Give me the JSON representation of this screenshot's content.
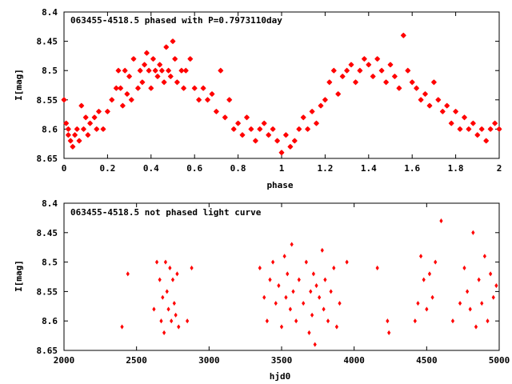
{
  "chart_data": [
    {
      "type": "scatter",
      "title": "063455-4518.5 phased with P=0.7973110day",
      "xlabel": "phase",
      "ylabel": "I[mag]",
      "xlim": [
        0,
        2
      ],
      "ylim": [
        8.4,
        8.65
      ],
      "y_inverted": true,
      "xticks": [
        "0",
        "0.2",
        "0.4",
        "0.6",
        "0.8",
        "1",
        "1.2",
        "1.4",
        "1.6",
        "1.8",
        "2"
      ],
      "yticks": [
        "8.4",
        "8.45",
        "8.5",
        "8.55",
        "8.6",
        "8.65"
      ],
      "grid": false,
      "color": "#ff0000",
      "marker": "star",
      "points": [
        [
          0.0,
          8.55
        ],
        [
          0.01,
          8.59
        ],
        [
          0.02,
          8.61
        ],
        [
          0.02,
          8.6
        ],
        [
          0.03,
          8.62
        ],
        [
          0.04,
          8.63
        ],
        [
          0.05,
          8.61
        ],
        [
          0.06,
          8.6
        ],
        [
          0.07,
          8.62
        ],
        [
          0.08,
          8.56
        ],
        [
          0.09,
          8.6
        ],
        [
          0.1,
          8.58
        ],
        [
          0.11,
          8.61
        ],
        [
          0.12,
          8.59
        ],
        [
          0.14,
          8.58
        ],
        [
          0.15,
          8.6
        ],
        [
          0.16,
          8.57
        ],
        [
          0.18,
          8.6
        ],
        [
          0.2,
          8.57
        ],
        [
          0.22,
          8.55
        ],
        [
          0.24,
          8.53
        ],
        [
          0.25,
          8.5
        ],
        [
          0.26,
          8.53
        ],
        [
          0.27,
          8.56
        ],
        [
          0.28,
          8.5
        ],
        [
          0.29,
          8.54
        ],
        [
          0.3,
          8.51
        ],
        [
          0.31,
          8.55
        ],
        [
          0.32,
          8.48
        ],
        [
          0.34,
          8.53
        ],
        [
          0.35,
          8.5
        ],
        [
          0.36,
          8.52
        ],
        [
          0.37,
          8.49
        ],
        [
          0.38,
          8.47
        ],
        [
          0.39,
          8.5
        ],
        [
          0.4,
          8.53
        ],
        [
          0.41,
          8.48
        ],
        [
          0.42,
          8.5
        ],
        [
          0.43,
          8.51
        ],
        [
          0.44,
          8.49
        ],
        [
          0.45,
          8.5
        ],
        [
          0.46,
          8.52
        ],
        [
          0.47,
          8.46
        ],
        [
          0.48,
          8.5
        ],
        [
          0.49,
          8.51
        ],
        [
          0.5,
          8.45
        ],
        [
          0.51,
          8.48
        ],
        [
          0.52,
          8.52
        ],
        [
          0.54,
          8.5
        ],
        [
          0.55,
          8.53
        ],
        [
          0.56,
          8.5
        ],
        [
          0.58,
          8.48
        ],
        [
          0.6,
          8.53
        ],
        [
          0.62,
          8.55
        ],
        [
          0.64,
          8.53
        ],
        [
          0.66,
          8.55
        ],
        [
          0.68,
          8.54
        ],
        [
          0.7,
          8.57
        ],
        [
          0.72,
          8.5
        ],
        [
          0.74,
          8.58
        ],
        [
          0.76,
          8.55
        ],
        [
          0.78,
          8.6
        ],
        [
          0.8,
          8.59
        ],
        [
          0.82,
          8.61
        ],
        [
          0.84,
          8.58
        ],
        [
          0.86,
          8.6
        ],
        [
          0.88,
          8.62
        ],
        [
          0.9,
          8.6
        ],
        [
          0.92,
          8.59
        ],
        [
          0.94,
          8.61
        ],
        [
          0.96,
          8.6
        ],
        [
          0.98,
          8.62
        ],
        [
          1.0,
          8.64
        ],
        [
          1.02,
          8.61
        ],
        [
          1.04,
          8.63
        ],
        [
          1.06,
          8.62
        ],
        [
          1.08,
          8.6
        ],
        [
          1.1,
          8.58
        ],
        [
          1.12,
          8.6
        ],
        [
          1.14,
          8.57
        ],
        [
          1.16,
          8.59
        ],
        [
          1.18,
          8.56
        ],
        [
          1.2,
          8.55
        ],
        [
          1.22,
          8.52
        ],
        [
          1.24,
          8.5
        ],
        [
          1.26,
          8.54
        ],
        [
          1.28,
          8.51
        ],
        [
          1.3,
          8.5
        ],
        [
          1.32,
          8.49
        ],
        [
          1.34,
          8.52
        ],
        [
          1.36,
          8.5
        ],
        [
          1.38,
          8.48
        ],
        [
          1.4,
          8.49
        ],
        [
          1.42,
          8.51
        ],
        [
          1.44,
          8.48
        ],
        [
          1.46,
          8.5
        ],
        [
          1.48,
          8.52
        ],
        [
          1.5,
          8.49
        ],
        [
          1.52,
          8.51
        ],
        [
          1.54,
          8.53
        ],
        [
          1.56,
          8.44
        ],
        [
          1.58,
          8.5
        ],
        [
          1.6,
          8.52
        ],
        [
          1.62,
          8.53
        ],
        [
          1.64,
          8.55
        ],
        [
          1.66,
          8.54
        ],
        [
          1.68,
          8.56
        ],
        [
          1.7,
          8.52
        ],
        [
          1.72,
          8.55
        ],
        [
          1.74,
          8.57
        ],
        [
          1.76,
          8.56
        ],
        [
          1.78,
          8.59
        ],
        [
          1.8,
          8.57
        ],
        [
          1.82,
          8.6
        ],
        [
          1.84,
          8.58
        ],
        [
          1.86,
          8.6
        ],
        [
          1.88,
          8.59
        ],
        [
          1.9,
          8.61
        ],
        [
          1.92,
          8.6
        ],
        [
          1.94,
          8.62
        ],
        [
          1.96,
          8.6
        ],
        [
          1.98,
          8.59
        ],
        [
          2.0,
          8.6
        ]
      ]
    },
    {
      "type": "scatter",
      "title": "063455-4518.5 not phased light curve",
      "xlabel": "hjd0",
      "ylabel": "I[mag]",
      "xlim": [
        2000,
        5000
      ],
      "ylim": [
        8.4,
        8.65
      ],
      "y_inverted": true,
      "xticks": [
        "2000",
        "2500",
        "3000",
        "3500",
        "4000",
        "4500",
        "5000"
      ],
      "yticks": [
        "8.4",
        "8.45",
        "8.5",
        "8.55",
        "8.6",
        "8.65"
      ],
      "grid": false,
      "color": "#ff0000",
      "marker": "diamond",
      "points": [
        [
          2400,
          8.61
        ],
        [
          2440,
          8.52
        ],
        [
          2620,
          8.58
        ],
        [
          2640,
          8.5
        ],
        [
          2660,
          8.53
        ],
        [
          2670,
          8.6
        ],
        [
          2680,
          8.56
        ],
        [
          2690,
          8.62
        ],
        [
          2700,
          8.5
        ],
        [
          2710,
          8.55
        ],
        [
          2720,
          8.58
        ],
        [
          2730,
          8.51
        ],
        [
          2740,
          8.6
        ],
        [
          2750,
          8.53
        ],
        [
          2760,
          8.57
        ],
        [
          2770,
          8.59
        ],
        [
          2780,
          8.52
        ],
        [
          2790,
          8.61
        ],
        [
          2850,
          8.6
        ],
        [
          2880,
          8.51
        ],
        [
          3350,
          8.51
        ],
        [
          3380,
          8.56
        ],
        [
          3400,
          8.6
        ],
        [
          3420,
          8.53
        ],
        [
          3440,
          8.5
        ],
        [
          3460,
          8.57
        ],
        [
          3480,
          8.54
        ],
        [
          3500,
          8.61
        ],
        [
          3520,
          8.49
        ],
        [
          3530,
          8.56
        ],
        [
          3540,
          8.52
        ],
        [
          3560,
          8.58
        ],
        [
          3570,
          8.47
        ],
        [
          3580,
          8.55
        ],
        [
          3600,
          8.6
        ],
        [
          3620,
          8.53
        ],
        [
          3650,
          8.57
        ],
        [
          3670,
          8.5
        ],
        [
          3690,
          8.62
        ],
        [
          3700,
          8.55
        ],
        [
          3710,
          8.59
        ],
        [
          3720,
          8.52
        ],
        [
          3730,
          8.64
        ],
        [
          3740,
          8.54
        ],
        [
          3760,
          8.56
        ],
        [
          3780,
          8.48
        ],
        [
          3790,
          8.58
        ],
        [
          3800,
          8.53
        ],
        [
          3820,
          8.6
        ],
        [
          3840,
          8.55
        ],
        [
          3860,
          8.51
        ],
        [
          3880,
          8.61
        ],
        [
          3900,
          8.57
        ],
        [
          3950,
          8.5
        ],
        [
          4160,
          8.51
        ],
        [
          4230,
          8.6
        ],
        [
          4240,
          8.62
        ],
        [
          4420,
          8.6
        ],
        [
          4440,
          8.57
        ],
        [
          4460,
          8.49
        ],
        [
          4480,
          8.53
        ],
        [
          4500,
          8.58
        ],
        [
          4520,
          8.52
        ],
        [
          4540,
          8.56
        ],
        [
          4560,
          8.5
        ],
        [
          4600,
          8.43
        ],
        [
          4680,
          8.6
        ],
        [
          4730,
          8.57
        ],
        [
          4760,
          8.51
        ],
        [
          4780,
          8.55
        ],
        [
          4800,
          8.58
        ],
        [
          4820,
          8.45
        ],
        [
          4840,
          8.61
        ],
        [
          4860,
          8.53
        ],
        [
          4880,
          8.57
        ],
        [
          4900,
          8.49
        ],
        [
          4920,
          8.6
        ],
        [
          4940,
          8.52
        ],
        [
          4960,
          8.56
        ],
        [
          4980,
          8.54
        ]
      ]
    }
  ]
}
